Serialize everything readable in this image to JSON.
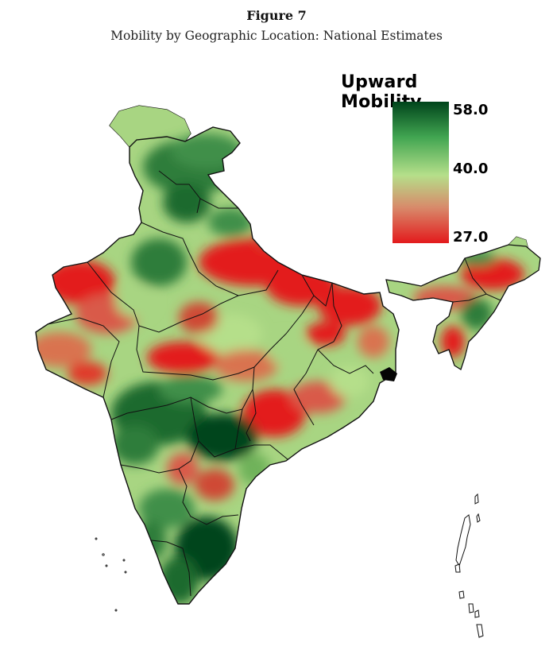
{
  "figure": {
    "label": "Figure 7",
    "title": "Mobility by Geographic Location: National Estimates"
  },
  "legend": {
    "title": "Upward Mobility",
    "ticks": {
      "max": "58.0",
      "mid": "40.0",
      "min": "27.0"
    },
    "scale_min": 27.0,
    "scale_mid": 40.0,
    "scale_max": 58.0,
    "colors": {
      "low": "#e31a1c",
      "mid": "#b5df8a",
      "high": "#00441b"
    }
  },
  "map": {
    "no_data_color": "#e0e0e0",
    "border_color": "#111111"
  }
}
